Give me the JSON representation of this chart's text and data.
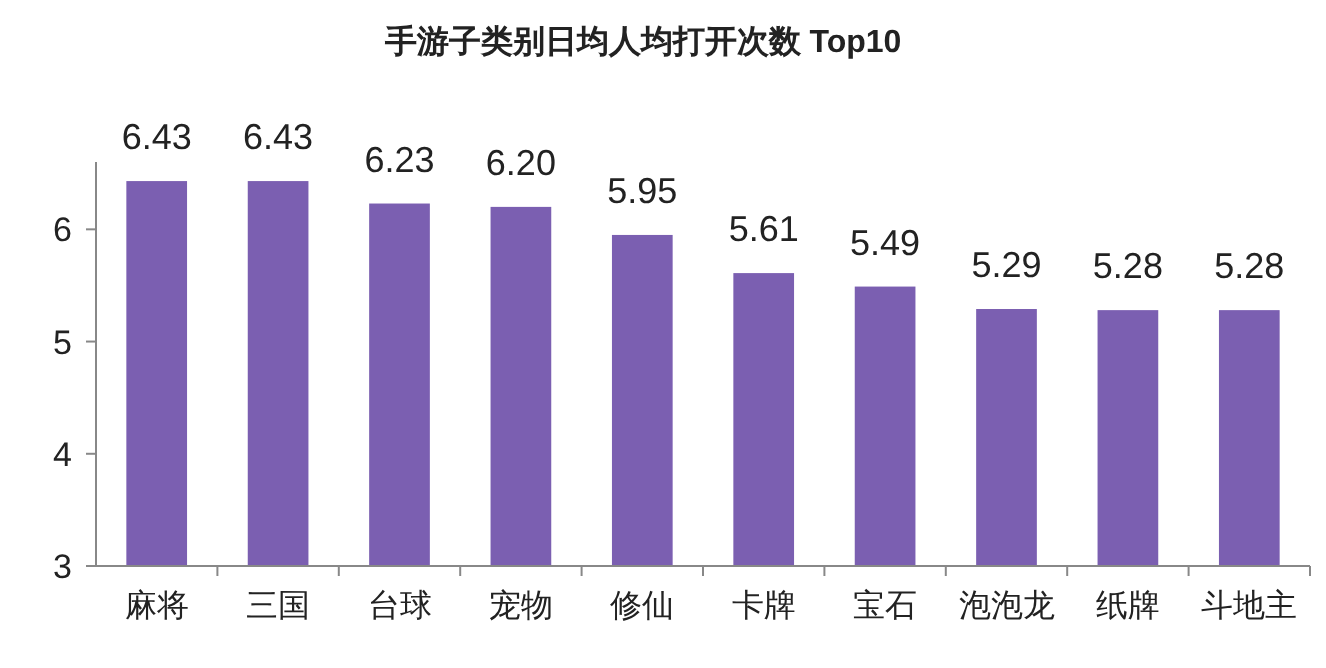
{
  "chart_data": {
    "type": "bar",
    "title": "手游子类别日均人均打开次数 Top10",
    "categories": [
      "麻将",
      "三国",
      "台球",
      "宠物",
      "修仙",
      "卡牌",
      "宝石",
      "泡泡龙",
      "纸牌",
      "斗地主"
    ],
    "values": [
      6.43,
      6.43,
      6.23,
      6.2,
      5.95,
      5.61,
      5.49,
      5.29,
      5.28,
      5.28
    ],
    "value_labels": [
      "6.43",
      "6.43",
      "6.23",
      "6.20",
      "5.95",
      "5.61",
      "5.49",
      "5.29",
      "5.28",
      "5.28"
    ],
    "color": "#7b5fb1",
    "ylim": [
      3,
      6.6
    ],
    "yticks": [
      3,
      4,
      5,
      6
    ],
    "grid": false
  }
}
